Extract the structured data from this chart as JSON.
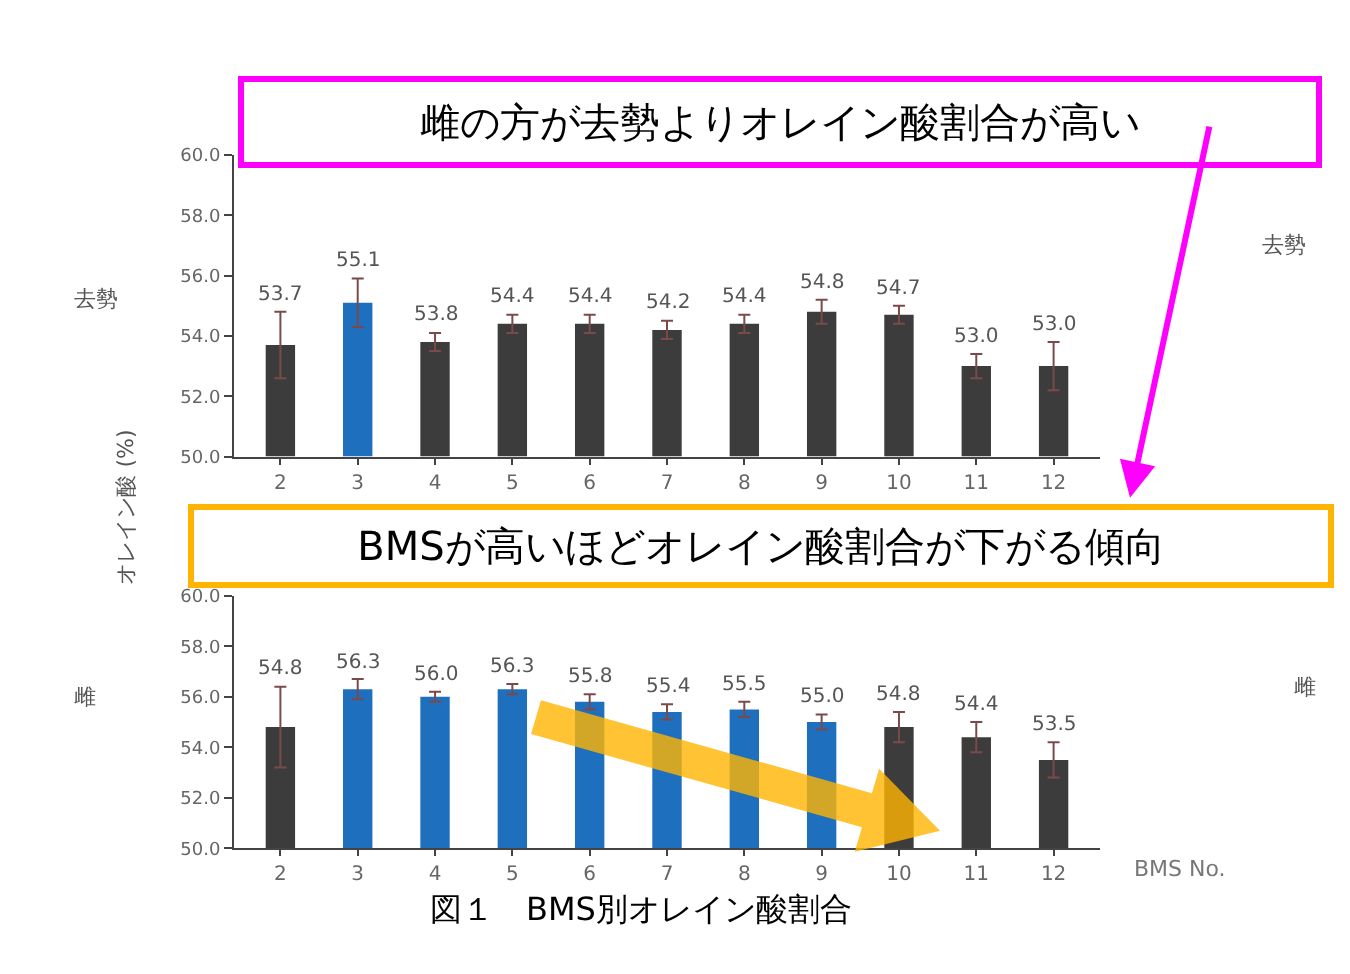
{
  "chart_data": [
    {
      "type": "bar",
      "ylabel": "オレイン酸 (%)",
      "categories": [
        "2",
        "3",
        "4",
        "5",
        "6",
        "7",
        "8",
        "9",
        "10",
        "11",
        "12"
      ],
      "values": [
        53.7,
        55.1,
        53.8,
        54.4,
        54.4,
        54.2,
        54.4,
        54.8,
        54.7,
        53.0,
        53.0
      ],
      "value_labels": [
        "53.7",
        "55.1",
        "53.8",
        "54.4",
        "54.4",
        "54.2",
        "54.4",
        "54.8",
        "54.7",
        "53.0",
        "53.0"
      ],
      "colors": [
        "#3c3c3c",
        "#1f6fbf",
        "#3c3c3c",
        "#3c3c3c",
        "#3c3c3c",
        "#3c3c3c",
        "#3c3c3c",
        "#3c3c3c",
        "#3c3c3c",
        "#3c3c3c",
        "#3c3c3c"
      ],
      "errors": [
        1.1,
        0.8,
        0.3,
        0.3,
        0.3,
        0.3,
        0.3,
        0.4,
        0.3,
        0.4,
        0.8
      ],
      "ylim": [
        50,
        60
      ],
      "yticks": [
        {
          "value": 50,
          "label": "50.0"
        },
        {
          "value": 52,
          "label": "52.0"
        },
        {
          "value": 54,
          "label": "54.0"
        },
        {
          "value": 56,
          "label": "56.0"
        },
        {
          "value": 58,
          "label": "58.0"
        },
        {
          "value": 60,
          "label": "60.0"
        }
      ],
      "annotations": [
        "去勢",
        "雌の方が去勢よりオレイン酸割合が高い",
        "去勢"
      ]
    },
    {
      "type": "bar",
      "xlabel": "BMS No.",
      "categories": [
        "2",
        "3",
        "4",
        "5",
        "6",
        "7",
        "8",
        "9",
        "10",
        "11",
        "12"
      ],
      "values": [
        54.8,
        56.3,
        56.0,
        56.3,
        55.8,
        55.4,
        55.5,
        55.0,
        54.8,
        54.4,
        53.5
      ],
      "value_labels": [
        "54.8",
        "56.3",
        "56.0",
        "56.3",
        "55.8",
        "55.4",
        "55.5",
        "55.0",
        "54.8",
        "54.4",
        "53.5"
      ],
      "colors": [
        "#3c3c3c",
        "#1f6fbf",
        "#1f6fbf",
        "#1f6fbf",
        "#1f6fbf",
        "#1f6fbf",
        "#1f6fbf",
        "#1f6fbf",
        "#3c3c3c",
        "#3c3c3c",
        "#3c3c3c"
      ],
      "errors": [
        1.6,
        0.4,
        0.2,
        0.2,
        0.3,
        0.3,
        0.3,
        0.3,
        0.6,
        0.6,
        0.7
      ],
      "ylim": [
        50,
        60
      ],
      "yticks": [
        {
          "value": 50,
          "label": "50.0"
        },
        {
          "value": 52,
          "label": "52.0"
        },
        {
          "value": 54,
          "label": "54.0"
        },
        {
          "value": 56,
          "label": "56.0"
        },
        {
          "value": 58,
          "label": "58.0"
        },
        {
          "value": 60,
          "label": "60.0"
        }
      ],
      "annotations": [
        "雌",
        "BMSが高いほどオレイン酸割合が下がる傾向",
        "雌",
        "図１　BMS別オレイン酸割合"
      ]
    }
  ]
}
